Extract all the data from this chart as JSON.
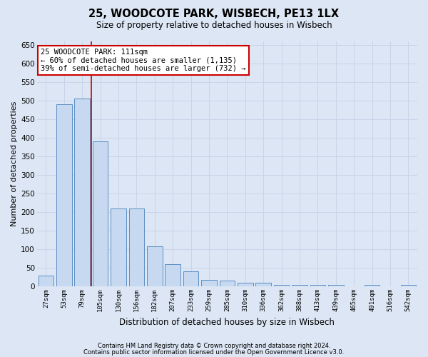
{
  "title": "25, WOODCOTE PARK, WISBECH, PE13 1LX",
  "subtitle": "Size of property relative to detached houses in Wisbech",
  "xlabel": "Distribution of detached houses by size in Wisbech",
  "ylabel": "Number of detached properties",
  "categories": [
    "27sqm",
    "53sqm",
    "79sqm",
    "105sqm",
    "130sqm",
    "156sqm",
    "182sqm",
    "207sqm",
    "233sqm",
    "259sqm",
    "285sqm",
    "310sqm",
    "336sqm",
    "362sqm",
    "388sqm",
    "413sqm",
    "439sqm",
    "465sqm",
    "491sqm",
    "516sqm",
    "542sqm"
  ],
  "values": [
    30,
    490,
    505,
    390,
    210,
    210,
    107,
    60,
    40,
    18,
    15,
    10,
    10,
    5,
    5,
    4,
    5,
    0,
    4,
    0,
    4
  ],
  "bar_color": "#c6d9f0",
  "bar_edgecolor": "#5b8ec4",
  "grid_color": "#c8d4e8",
  "background_color": "#dce6f4",
  "red_line_index": 3,
  "ylim": [
    0,
    660
  ],
  "yticks": [
    0,
    50,
    100,
    150,
    200,
    250,
    300,
    350,
    400,
    450,
    500,
    550,
    600,
    650
  ],
  "annotation_text": "25 WOODCOTE PARK: 111sqm\n← 60% of detached houses are smaller (1,135)\n39% of semi-detached houses are larger (732) →",
  "annotation_box_color": "#ffffff",
  "annotation_border_color": "#cc0000",
  "footer_line1": "Contains HM Land Registry data © Crown copyright and database right 2024.",
  "footer_line2": "Contains public sector information licensed under the Open Government Licence v3.0."
}
